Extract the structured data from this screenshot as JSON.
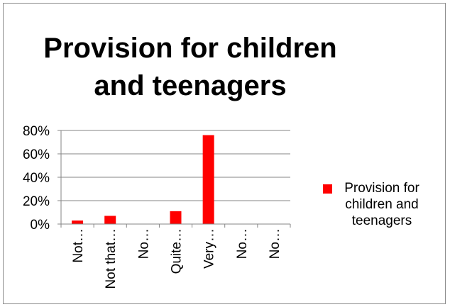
{
  "chart_data": {
    "type": "bar",
    "title": "Provision for children and teenagers",
    "categories": [
      "Not…",
      "Not that…",
      "No…",
      "Quite…",
      "Very…",
      "No…",
      "No…"
    ],
    "series": [
      {
        "name": "Provision for children and teenagers",
        "values": [
          0.03,
          0.07,
          0.0,
          0.11,
          0.76,
          0.0,
          0.0
        ]
      }
    ],
    "yticks": [
      "80%",
      "60%",
      "40%",
      "20%",
      "0%"
    ],
    "ylim": [
      0,
      0.8
    ],
    "grid": true,
    "legend": "right",
    "bar_color": "#ff0000"
  }
}
